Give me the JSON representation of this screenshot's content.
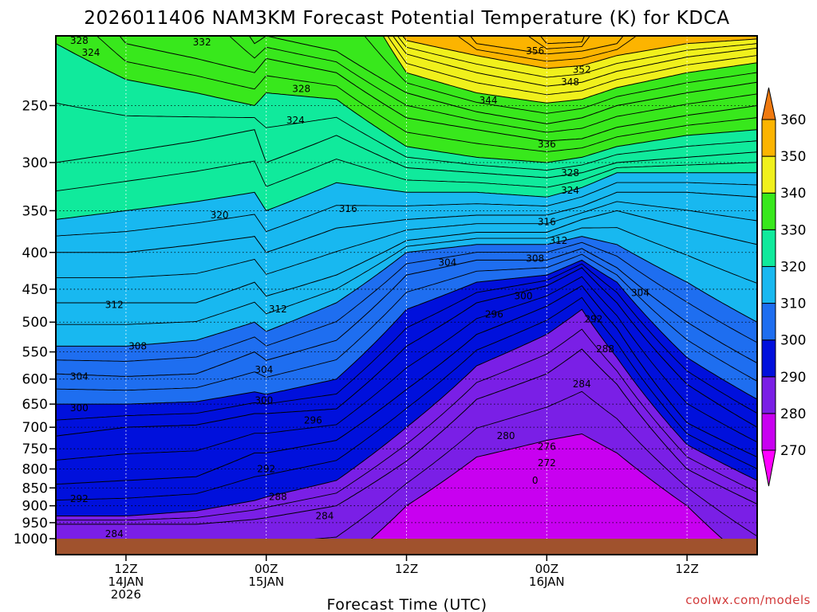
{
  "chart_data": {
    "type": "heatmap",
    "title": "2026011406 NAM3KM Forecast Potential Temperature (K) for KDCA",
    "xlabel": "Forecast Time (UTC)",
    "ylabel": "",
    "credit": "coolwx.com/models",
    "y_scale": "log",
    "y_range_hPa": [
      1000,
      200
    ],
    "y_ticks": [
      250,
      300,
      350,
      400,
      450,
      500,
      550,
      600,
      650,
      700,
      750,
      800,
      850,
      900,
      950,
      1000
    ],
    "x_range_hours": [
      0,
      60
    ],
    "x_ticks": [
      {
        "hour": 6,
        "lines": [
          "12Z",
          "14JAN",
          "2026"
        ]
      },
      {
        "hour": 18,
        "lines": [
          "00Z",
          "15JAN"
        ]
      },
      {
        "hour": 30,
        "lines": [
          "12Z"
        ]
      },
      {
        "hour": 42,
        "lines": [
          "00Z",
          "16JAN"
        ]
      },
      {
        "hour": 54,
        "lines": [
          "12Z"
        ]
      }
    ],
    "colorbar": {
      "ticks": [
        270,
        280,
        290,
        300,
        310,
        320,
        330,
        340,
        350,
        360
      ],
      "bins": [
        {
          "min": 260,
          "max": 270,
          "color": "#ff00ff"
        },
        {
          "min": 270,
          "max": 280,
          "color": "#c800f0"
        },
        {
          "min": 280,
          "max": 290,
          "color": "#7a1fe6"
        },
        {
          "min": 290,
          "max": 300,
          "color": "#0010dc"
        },
        {
          "min": 300,
          "max": 310,
          "color": "#1e6ef0"
        },
        {
          "min": 310,
          "max": 320,
          "color": "#18b8f0"
        },
        {
          "min": 320,
          "max": 330,
          "color": "#10ea9c"
        },
        {
          "min": 330,
          "max": 340,
          "color": "#38e81c"
        },
        {
          "min": 340,
          "max": 350,
          "color": "#f0f01c"
        },
        {
          "min": 350,
          "max": 360,
          "color": "#fcb400"
        },
        {
          "min": 360,
          "max": 370,
          "color": "#f07a10"
        }
      ],
      "ground_color": "#a0522d"
    },
    "contour_interval_K": 4,
    "isentrope_profiles": {
      "hours": [
        0,
        6,
        12,
        17,
        18,
        24,
        30,
        36,
        42,
        45,
        48,
        54,
        60
      ],
      "pressure_hPa_by_theta": {
        "280": [
          null,
          null,
          null,
          null,
          null,
          null,
          900,
          770,
          730,
          715,
          760,
          900,
          null
        ],
        "284": [
          955,
          955,
          955,
          940,
          935,
          900,
          780,
          640,
          590,
          545,
          610,
          800,
          895
        ],
        "288": [
          930,
          930,
          915,
          885,
          875,
          830,
          700,
          575,
          520,
          480,
          560,
          740,
          830
        ],
        "292": [
          840,
          830,
          820,
          760,
          760,
          730,
          620,
          520,
          475,
          445,
          510,
          690,
          770
        ],
        "296": [
          720,
          700,
          695,
          670,
          670,
          660,
          540,
          470,
          445,
          420,
          470,
          610,
          700
        ],
        "300": [
          650,
          650,
          645,
          625,
          630,
          600,
          480,
          440,
          430,
          410,
          440,
          560,
          640
        ],
        "304": [
          590,
          595,
          590,
          550,
          565,
          530,
          430,
          410,
          410,
          395,
          420,
          500,
          570
        ],
        "308": [
          540,
          540,
          530,
          500,
          515,
          470,
          400,
          390,
          390,
          380,
          390,
          440,
          500
        ],
        "312": [
          470,
          470,
          470,
          440,
          460,
          430,
          385,
          375,
          375,
          360,
          350,
          370,
          390
        ],
        "316": [
          400,
          400,
          390,
          380,
          400,
          370,
          360,
          355,
          355,
          345,
          330,
          330,
          335
        ],
        "320": [
          360,
          350,
          340,
          330,
          350,
          320,
          330,
          330,
          335,
          325,
          310,
          310,
          310
        ],
        "324": [
          300,
          290,
          280,
          270,
          300,
          275,
          305,
          310,
          315,
          310,
          300,
          295,
          290
        ],
        "328": [
          205,
          230,
          240,
          250,
          240,
          245,
          285,
          295,
          300,
          295,
          285,
          275,
          270
        ],
        "332": [
          null,
          205,
          215,
          225,
          215,
          225,
          260,
          270,
          280,
          278,
          268,
          258,
          250
        ],
        "336": [
          null,
          null,
          null,
          205,
          200,
          210,
          240,
          255,
          265,
          260,
          250,
          240,
          232
        ],
        "340": [
          null,
          null,
          null,
          null,
          null,
          null,
          225,
          240,
          248,
          245,
          236,
          225,
          218
        ],
        "344": [
          null,
          null,
          null,
          null,
          null,
          null,
          212,
          225,
          235,
          232,
          224,
          214,
          208
        ],
        "348": [
          null,
          null,
          null,
          null,
          null,
          null,
          203,
          213,
          222,
          220,
          213,
          205,
          202
        ],
        "352": [
          null,
          null,
          null,
          null,
          null,
          null,
          null,
          205,
          212,
          210,
          205,
          null,
          null
        ],
        "356": [
          null,
          null,
          null,
          null,
          null,
          null,
          null,
          null,
          205,
          204,
          null,
          null,
          null
        ]
      }
    },
    "contour_labels": [
      {
        "text": "328",
        "hour": 2,
        "pressure": 203
      },
      {
        "text": "324",
        "hour": 3,
        "pressure": 211
      },
      {
        "text": "332",
        "hour": 12.5,
        "pressure": 204
      },
      {
        "text": "328",
        "hour": 21,
        "pressure": 237
      },
      {
        "text": "324",
        "hour": 20.5,
        "pressure": 262
      },
      {
        "text": "320",
        "hour": 14,
        "pressure": 355
      },
      {
        "text": "316",
        "hour": 25,
        "pressure": 348
      },
      {
        "text": "356",
        "hour": 41,
        "pressure": 210
      },
      {
        "text": "352",
        "hour": 45,
        "pressure": 223
      },
      {
        "text": "348",
        "hour": 44,
        "pressure": 232
      },
      {
        "text": "344",
        "hour": 37,
        "pressure": 246
      },
      {
        "text": "336",
        "hour": 42,
        "pressure": 283
      },
      {
        "text": "328",
        "hour": 44,
        "pressure": 310
      },
      {
        "text": "324",
        "hour": 44,
        "pressure": 328
      },
      {
        "text": "316",
        "hour": 42,
        "pressure": 363
      },
      {
        "text": "312",
        "hour": 43,
        "pressure": 385
      },
      {
        "text": "308",
        "hour": 41,
        "pressure": 408
      },
      {
        "text": "304",
        "hour": 33.5,
        "pressure": 413
      },
      {
        "text": "300",
        "hour": 40,
        "pressure": 460
      },
      {
        "text": "304",
        "hour": 50,
        "pressure": 455
      },
      {
        "text": "296",
        "hour": 37.5,
        "pressure": 488
      },
      {
        "text": "292",
        "hour": 46,
        "pressure": 495
      },
      {
        "text": "288",
        "hour": 47,
        "pressure": 545
      },
      {
        "text": "284",
        "hour": 45,
        "pressure": 610
      },
      {
        "text": "312",
        "hour": 5,
        "pressure": 473
      },
      {
        "text": "308",
        "hour": 7,
        "pressure": 540
      },
      {
        "text": "304",
        "hour": 2,
        "pressure": 595
      },
      {
        "text": "300",
        "hour": 2,
        "pressure": 658
      },
      {
        "text": "312",
        "hour": 19,
        "pressure": 480
      },
      {
        "text": "304",
        "hour": 17.8,
        "pressure": 582
      },
      {
        "text": "300",
        "hour": 17.8,
        "pressure": 642
      },
      {
        "text": "296",
        "hour": 22,
        "pressure": 685
      },
      {
        "text": "292",
        "hour": 18,
        "pressure": 800
      },
      {
        "text": "292",
        "hour": 2,
        "pressure": 880
      },
      {
        "text": "288",
        "hour": 19,
        "pressure": 875
      },
      {
        "text": "284",
        "hour": 23,
        "pressure": 930
      },
      {
        "text": "284",
        "hour": 5,
        "pressure": 985
      },
      {
        "text": "280",
        "hour": 38.5,
        "pressure": 720
      },
      {
        "text": "276",
        "hour": 42,
        "pressure": 745
      },
      {
        "text": "272",
        "hour": 42,
        "pressure": 785
      },
      {
        "text": "0",
        "hour": 41,
        "pressure": 830
      }
    ]
  }
}
